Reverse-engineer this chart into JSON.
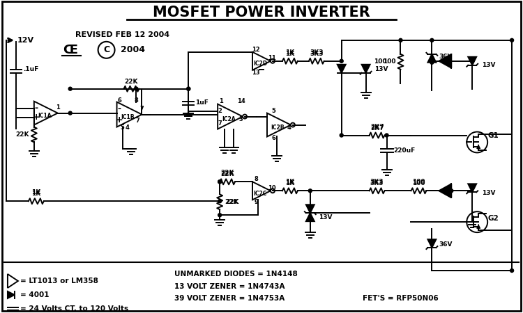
{
  "title": "MOSFET POWER INVERTER",
  "bg_color": "#ffffff",
  "line_color": "#000000",
  "text_color": "#000000",
  "lw": 1.4,
  "labels": {
    "revised": "REVISED FEB 12 2004",
    "v12": "12V",
    "ic1a": "IC1A",
    "ic1b": "IC1B",
    "ic2a": "IC2A",
    "ic2b": "IC2B",
    "ic2c": "IC2C",
    "ic2d": "IC2D",
    "g1": "G1",
    "g2": "G2",
    "note1": "= LT1013 or LM358",
    "note2": "= 4001",
    "note3": "= 24 Volts CT. to 120 Volts",
    "note4": "UNMARKED DIODES = 1N4148",
    "note5": "13 VOLT ZENER = 1N4743A",
    "note6": "39 VOLT ZENER = 1N4753A",
    "note7": "FET'S = RFP50N06"
  }
}
